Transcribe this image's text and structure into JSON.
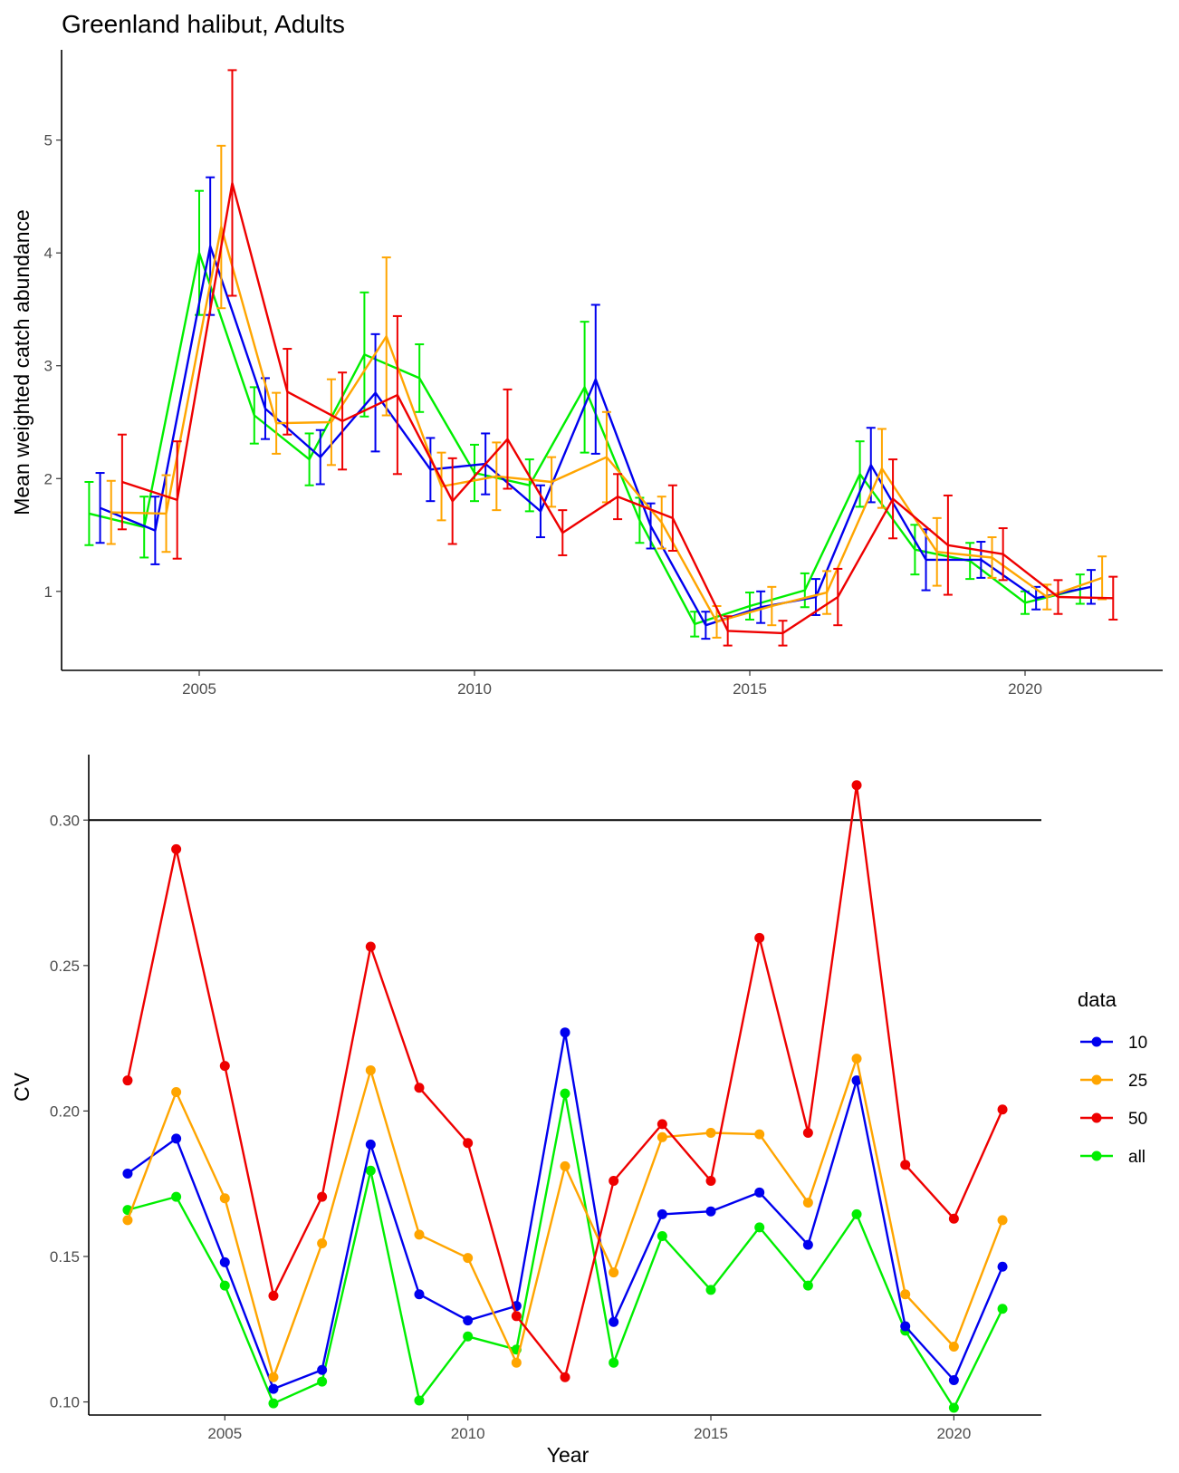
{
  "chart_data": [
    {
      "type": "line",
      "title": "Greenland halibut, Adults",
      "xlabel": "",
      "ylabel": "Mean weighted catch abundance",
      "xlim": [
        2002.5,
        2022.5
      ],
      "ylim": [
        0.3,
        5.8
      ],
      "xticks": [
        2005,
        2010,
        2015,
        2020
      ],
      "xtick_labels": [
        "2005",
        "2010",
        "2015",
        "2020"
      ],
      "yticks": [
        1,
        2,
        3,
        4,
        5
      ],
      "ytick_labels": [
        "1",
        "2",
        "3",
        "4",
        "5"
      ],
      "error_bars": true,
      "grid": false,
      "series": [
        {
          "name": "all",
          "color": "#00ee00",
          "x": [
            2003.0,
            2004.0,
            2005.0,
            2006.0,
            2007.0,
            2008.0,
            2009.0,
            2010.0,
            2011.0,
            2012.0,
            2013.0,
            2014.0,
            2015.0,
            2016.0,
            2017.0,
            2018.0,
            2019.0,
            2020.0,
            2021.0
          ],
          "y": [
            1.69,
            1.57,
            4.0,
            2.56,
            2.17,
            3.1,
            2.89,
            2.05,
            1.94,
            2.81,
            1.63,
            0.71,
            0.87,
            1.01,
            2.04,
            1.37,
            1.27,
            0.9,
            1.02
          ],
          "err": [
            0.28,
            0.27,
            0.55,
            0.25,
            0.23,
            0.55,
            0.3,
            0.25,
            0.23,
            0.58,
            0.2,
            0.11,
            0.12,
            0.15,
            0.29,
            0.22,
            0.16,
            0.1,
            0.13
          ]
        },
        {
          "name": "10",
          "color": "#0000ee",
          "x": [
            2003.2,
            2004.2,
            2005.2,
            2006.2,
            2007.2,
            2008.2,
            2009.2,
            2010.2,
            2011.2,
            2012.2,
            2013.2,
            2014.2,
            2015.2,
            2016.2,
            2017.2,
            2018.2,
            2019.2,
            2020.2,
            2021.2
          ],
          "y": [
            1.74,
            1.54,
            4.06,
            2.62,
            2.19,
            2.76,
            2.08,
            2.13,
            1.71,
            2.88,
            1.58,
            0.7,
            0.86,
            0.95,
            2.12,
            1.28,
            1.28,
            0.94,
            1.04
          ],
          "err": [
            0.31,
            0.3,
            0.61,
            0.27,
            0.24,
            0.52,
            0.28,
            0.27,
            0.23,
            0.66,
            0.2,
            0.12,
            0.14,
            0.16,
            0.33,
            0.27,
            0.16,
            0.1,
            0.15
          ]
        },
        {
          "name": "25",
          "color": "#ffa500",
          "x": [
            2003.4,
            2004.4,
            2005.4,
            2006.4,
            2007.4,
            2008.4,
            2009.4,
            2010.4,
            2011.4,
            2012.4,
            2013.4,
            2014.4,
            2015.4,
            2016.4,
            2017.4,
            2018.4,
            2019.4,
            2020.4,
            2021.4
          ],
          "y": [
            1.7,
            1.69,
            4.23,
            2.49,
            2.5,
            3.26,
            1.93,
            2.02,
            1.97,
            2.19,
            1.61,
            0.73,
            0.87,
            0.99,
            2.09,
            1.35,
            1.3,
            0.95,
            1.12
          ],
          "err": [
            0.28,
            0.34,
            0.72,
            0.27,
            0.38,
            0.7,
            0.3,
            0.3,
            0.22,
            0.4,
            0.23,
            0.14,
            0.17,
            0.19,
            0.35,
            0.3,
            0.18,
            0.11,
            0.19
          ]
        },
        {
          "name": "50",
          "color": "#ee0000",
          "x": [
            2003.6,
            2004.6,
            2005.6,
            2006.6,
            2007.6,
            2008.6,
            2009.6,
            2010.6,
            2011.6,
            2012.6,
            2013.6,
            2014.6,
            2015.6,
            2016.6,
            2017.6,
            2018.6,
            2019.6,
            2020.6,
            2021.6
          ],
          "y": [
            1.97,
            1.81,
            4.62,
            2.77,
            2.51,
            2.74,
            1.8,
            2.35,
            1.52,
            1.84,
            1.65,
            0.65,
            0.63,
            0.95,
            1.82,
            1.41,
            1.33,
            0.95,
            0.94
          ],
          "err": [
            0.42,
            0.52,
            1.0,
            0.38,
            0.43,
            0.7,
            0.38,
            0.44,
            0.2,
            0.2,
            0.29,
            0.13,
            0.11,
            0.25,
            0.35,
            0.44,
            0.23,
            0.15,
            0.19
          ]
        }
      ]
    },
    {
      "type": "line",
      "title": "",
      "xlabel": "Year",
      "ylabel": "CV",
      "xlim": [
        2002.2,
        2021.8
      ],
      "ylim": [
        0.0955,
        0.3225
      ],
      "xticks": [
        2005,
        2010,
        2015,
        2020
      ],
      "xtick_labels": [
        "2005",
        "2010",
        "2015",
        "2020"
      ],
      "yticks": [
        0.1,
        0.15,
        0.2,
        0.25,
        0.3
      ],
      "ytick_labels": [
        "0.10",
        "0.15",
        "0.20",
        "0.25",
        "0.30"
      ],
      "reference_line_y": 0.3,
      "grid": false,
      "legend": {
        "title": "data",
        "placement": "right",
        "entries": [
          "10",
          "25",
          "50",
          "all"
        ]
      },
      "x": [
        2003,
        2004,
        2005,
        2006,
        2007,
        2008,
        2009,
        2010,
        2011,
        2012,
        2013,
        2014,
        2015,
        2016,
        2017,
        2018,
        2019,
        2020,
        2021
      ],
      "series": [
        {
          "name": "10",
          "color": "#0000ee",
          "values": [
            0.1785,
            0.1905,
            0.148,
            0.1045,
            0.111,
            0.1885,
            0.137,
            0.128,
            0.133,
            0.227,
            0.1275,
            0.1645,
            0.1655,
            0.172,
            0.154,
            0.2105,
            0.126,
            0.1075,
            0.1465
          ]
        },
        {
          "name": "25",
          "color": "#ffa500",
          "values": [
            0.1625,
            0.2065,
            0.17,
            0.1085,
            0.1545,
            0.214,
            0.1575,
            0.1495,
            0.1135,
            0.181,
            0.1445,
            0.191,
            0.1925,
            0.192,
            0.1685,
            0.218,
            0.137,
            0.119,
            0.1625
          ]
        },
        {
          "name": "50",
          "color": "#ee0000",
          "values": [
            0.2105,
            0.29,
            0.2155,
            0.1365,
            0.1705,
            0.2565,
            0.208,
            0.189,
            0.1295,
            0.1085,
            0.176,
            0.1955,
            0.176,
            0.2595,
            0.1925,
            0.312,
            0.1815,
            0.163,
            0.2005
          ]
        },
        {
          "name": "all",
          "color": "#00ee00",
          "values": [
            0.166,
            0.1705,
            0.14,
            0.0995,
            0.107,
            0.1795,
            0.1005,
            0.1225,
            0.118,
            0.206,
            0.1135,
            0.157,
            0.1385,
            0.16,
            0.14,
            0.1645,
            0.1245,
            0.098,
            0.132
          ]
        }
      ]
    }
  ]
}
